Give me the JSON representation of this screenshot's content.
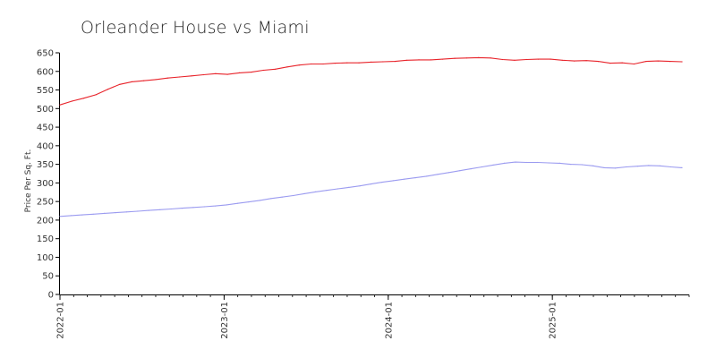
{
  "chart_data": {
    "type": "line",
    "title": "Orleander House vs Miami",
    "xlabel": "",
    "ylabel": "Price Per Sq. Ft.",
    "ylim": [
      0,
      650
    ],
    "yticks": [
      0,
      50,
      100,
      150,
      200,
      250,
      300,
      350,
      400,
      450,
      500,
      550,
      600,
      650
    ],
    "xticks": [
      "2022-01",
      "2023-01",
      "2024-01",
      "2025-01"
    ],
    "x_start": "2022-01",
    "x_end": "2025-10",
    "legend": "none",
    "grid": false,
    "series": [
      {
        "color": "#e8232a",
        "values": [
          510,
          520,
          528,
          537,
          552,
          565,
          572,
          575,
          578,
          582,
          585,
          588,
          591,
          594,
          592,
          596,
          598,
          603,
          606,
          612,
          617,
          620,
          620,
          622,
          623,
          623,
          625,
          626,
          627,
          630,
          631,
          631,
          633,
          635,
          636,
          637,
          636,
          632,
          630,
          632,
          633,
          633,
          630,
          628,
          629,
          627,
          622,
          623,
          620,
          627,
          628,
          627,
          626
        ]
      },
      {
        "color": "#9b9bf0",
        "values": [
          210,
          212,
          214,
          216,
          218,
          220,
          222,
          224,
          226,
          228,
          230,
          232,
          234,
          236,
          238,
          241,
          245,
          249,
          253,
          258,
          262,
          266,
          271,
          276,
          280,
          284,
          288,
          292,
          297,
          302,
          306,
          310,
          314,
          318,
          323,
          328,
          333,
          338,
          343,
          348,
          353,
          356,
          355,
          355,
          354,
          353,
          350,
          349,
          346,
          341,
          340,
          343,
          345,
          347,
          346,
          343,
          341
        ]
      }
    ]
  }
}
